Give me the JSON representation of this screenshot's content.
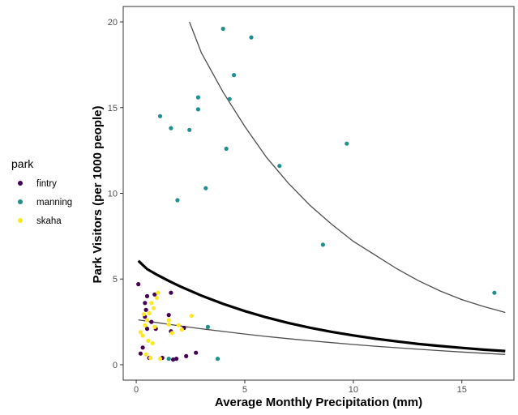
{
  "chart_data": {
    "type": "scatter",
    "xlabel": "Average Monthly Precipitation (mm)",
    "ylabel": "Park Visitors (per 1000 people)",
    "xlim": [
      -0.6,
      17.4
    ],
    "ylim": [
      -0.9,
      20.9
    ],
    "x_ticks": [
      0,
      5,
      10,
      15
    ],
    "y_ticks": [
      0,
      5,
      10,
      15,
      20
    ],
    "grid": false,
    "legend": {
      "title": "park",
      "position": "left",
      "entries": [
        "fintry",
        "manning",
        "skaha"
      ]
    },
    "colors": {
      "fintry": "#440154",
      "manning": "#21908c",
      "skaha": "#fde725",
      "fit_line": "#000000",
      "band_line": "#4d4d4d"
    },
    "series": [
      {
        "name": "fintry",
        "points": [
          [
            0.1,
            4.7
          ],
          [
            0.4,
            3.6
          ],
          [
            0.45,
            3.2
          ],
          [
            0.5,
            4.0
          ],
          [
            0.5,
            2.1
          ],
          [
            0.6,
            0.4
          ],
          [
            0.3,
            1.0
          ],
          [
            0.2,
            0.65
          ],
          [
            0.85,
            4.1
          ],
          [
            1.2,
            0.4
          ],
          [
            0.7,
            2.5
          ],
          [
            1.5,
            2.9
          ],
          [
            1.6,
            4.2
          ],
          [
            1.6,
            1.95
          ],
          [
            1.7,
            0.3
          ],
          [
            1.85,
            0.35
          ],
          [
            2.2,
            2.15
          ],
          [
            2.75,
            0.7
          ],
          [
            2.3,
            0.5
          ],
          [
            0.9,
            2.1
          ],
          [
            0.4,
            2.8
          ]
        ]
      },
      {
        "name": "manning",
        "points": [
          [
            4.0,
            19.6
          ],
          [
            5.3,
            19.1
          ],
          [
            4.5,
            16.9
          ],
          [
            2.85,
            15.6
          ],
          [
            4.3,
            15.5
          ],
          [
            2.85,
            14.9
          ],
          [
            1.1,
            14.5
          ],
          [
            1.6,
            13.8
          ],
          [
            2.45,
            13.7
          ],
          [
            9.7,
            12.9
          ],
          [
            4.15,
            12.6
          ],
          [
            6.6,
            11.6
          ],
          [
            3.2,
            10.3
          ],
          [
            1.9,
            9.6
          ],
          [
            8.6,
            7.0
          ],
          [
            16.5,
            4.2
          ],
          [
            3.3,
            2.2
          ],
          [
            1.5,
            0.35
          ],
          [
            3.75,
            0.35
          ]
        ]
      },
      {
        "name": "skaha",
        "points": [
          [
            0.2,
            1.9
          ],
          [
            0.3,
            1.7
          ],
          [
            0.5,
            2.6
          ],
          [
            0.6,
            3.0
          ],
          [
            0.7,
            3.6
          ],
          [
            0.8,
            3.3
          ],
          [
            0.4,
            2.3
          ],
          [
            1.0,
            4.2
          ],
          [
            0.55,
            1.4
          ],
          [
            0.75,
            1.25
          ],
          [
            0.95,
            3.9
          ],
          [
            0.65,
            0.4
          ],
          [
            1.1,
            0.35
          ],
          [
            1.5,
            2.6
          ],
          [
            1.5,
            2.35
          ],
          [
            1.65,
            1.85
          ],
          [
            1.95,
            2.3
          ],
          [
            2.1,
            2.05
          ],
          [
            2.55,
            2.85
          ],
          [
            0.85,
            2.2
          ],
          [
            0.45,
            0.6
          ],
          [
            0.35,
            2.95
          ]
        ]
      }
    ],
    "fit_lines": [
      {
        "role": "mean-fit",
        "x": [
          0.1,
          0.5,
          1,
          1.5,
          2,
          3,
          4,
          5,
          6,
          7,
          8,
          9,
          10,
          11,
          12,
          13,
          14,
          15,
          16,
          17
        ],
        "y": [
          6.06,
          5.58,
          5.22,
          4.89,
          4.58,
          4.03,
          3.55,
          3.13,
          2.76,
          2.44,
          2.16,
          1.92,
          1.71,
          1.52,
          1.36,
          1.21,
          1.09,
          0.98,
          0.88,
          0.8
        ]
      },
      {
        "role": "upper-band",
        "x": [
          2.45,
          3,
          4,
          5,
          6,
          7,
          8,
          9,
          10,
          11,
          12,
          13,
          14,
          15,
          16,
          17
        ],
        "y": [
          20.0,
          18.2,
          15.9,
          13.9,
          12.1,
          10.6,
          9.3,
          8.2,
          7.2,
          6.4,
          5.6,
          4.9,
          4.3,
          3.8,
          3.4,
          3.05
        ]
      },
      {
        "role": "lower-band",
        "x": [
          0.1,
          1,
          2,
          3,
          4,
          5,
          6,
          7,
          8,
          9,
          10,
          11,
          12,
          13,
          14,
          15,
          16,
          17
        ],
        "y": [
          2.62,
          2.45,
          2.27,
          2.1,
          1.94,
          1.79,
          1.65,
          1.52,
          1.4,
          1.29,
          1.18,
          1.08,
          0.99,
          0.9,
          0.82,
          0.74,
          0.67,
          0.6
        ]
      }
    ]
  }
}
